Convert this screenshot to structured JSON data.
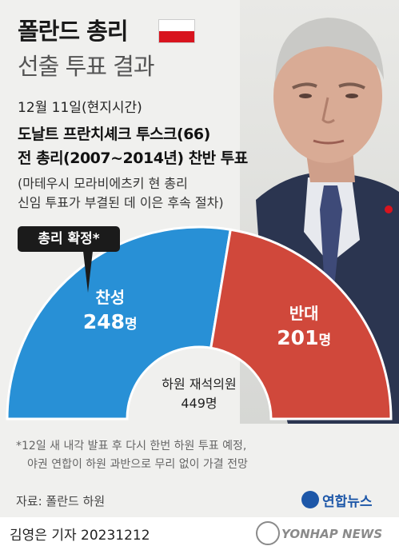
{
  "header": {
    "title": "폴란드 총리",
    "subtitle": "선출 투표 결과"
  },
  "info": {
    "date": "12월 11일(현지시간)",
    "person": "도날트 프란치셰크 투스크(66)",
    "vote_desc": "전 총리(2007~2014년) 찬반 투표",
    "note_line1": "(마테우시 모라비에츠키 현 총리",
    "note_line2": "신임 투표가 부결된 데 이은 후속 절차)"
  },
  "badge": {
    "label": "총리 확정*"
  },
  "chart_data": {
    "type": "pie",
    "variant": "semicircle-donut",
    "unit": "명",
    "slices": [
      {
        "label": "찬성",
        "value": 248,
        "color": "#2890d6"
      },
      {
        "label": "반대",
        "value": 201,
        "color": "#d0483b"
      }
    ],
    "center_label": "하원 재석의원",
    "center_value": "449명"
  },
  "footnote": {
    "line1": "*12일 새 내각 발표 후 다시 한번 하원 투표 예정,",
    "line2": "야권 연합이 하원 과반으로 무리 없이 가결 전망"
  },
  "source": "자료: 폴란드 하원",
  "logo": "연합뉴스",
  "reporter": "김영은 기자  20231212",
  "watermark": "YONHAP NEWS",
  "colors": {
    "flag_white": "#ffffff",
    "flag_red": "#d8141e",
    "brand": "#1d57a8"
  }
}
